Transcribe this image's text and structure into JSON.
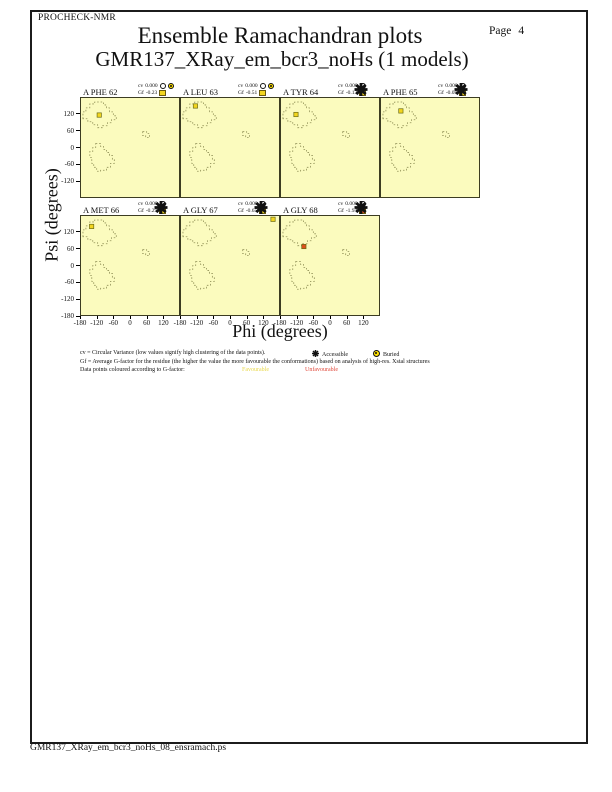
{
  "header": {
    "app_name": "PROCHECK-NMR",
    "title": "Ensemble Ramachandran plots",
    "page_label": "Page",
    "page_number": "4",
    "subtitle": "GMR137_XRay_em_bcr3_noHs (1 models)"
  },
  "axes": {
    "x_label": "Phi (degrees)",
    "y_label": "Psi (degrees)",
    "x_ticks": [
      -180,
      -120,
      -60,
      0,
      60,
      120
    ],
    "y_ticks_row1": [
      120,
      60,
      0,
      -60,
      -120
    ],
    "y_ticks_row2": [
      120,
      60,
      0,
      -60,
      -120,
      -180
    ]
  },
  "chart_data": {
    "type": "scatter",
    "xlim": [
      -180,
      180
    ],
    "ylim": [
      -180,
      180
    ],
    "x_axis": "Phi (degrees)",
    "y_axis": "Psi (degrees)",
    "rows": [
      [
        0,
        1,
        2,
        3
      ],
      [
        4,
        5,
        6
      ]
    ],
    "cv_label": "cv",
    "gf_label": "Gf",
    "plots": [
      {
        "residue": "A PHE 62",
        "cv": "0.000",
        "gf": "-0.23",
        "gf_status": "favourable",
        "exposure": "buried",
        "points": [
          {
            "phi": -113,
            "psi": 118,
            "status": "favourable"
          }
        ]
      },
      {
        "residue": "A LEU 63",
        "cv": "0.000",
        "gf": "-0.51",
        "gf_status": "favourable",
        "exposure": "buried",
        "points": [
          {
            "phi": -127,
            "psi": 151,
            "status": "favourable"
          }
        ]
      },
      {
        "residue": "A TYR 64",
        "cv": "0.000",
        "gf": "-0.13",
        "gf_status": "favourable",
        "exposure": "accessible",
        "points": [
          {
            "phi": -125,
            "psi": 120,
            "status": "favourable"
          }
        ]
      },
      {
        "residue": "A PHE 65",
        "cv": "0.000",
        "gf": "-0.08",
        "gf_status": "favourable",
        "exposure": "accessible",
        "points": [
          {
            "phi": -107,
            "psi": 133,
            "status": "favourable"
          }
        ]
      },
      {
        "residue": "A MET 66",
        "cv": "0.000",
        "gf": "-0.29",
        "gf_status": "favourable",
        "exposure": "accessible",
        "points": [
          {
            "phi": -141,
            "psi": 142,
            "status": "favourable"
          }
        ]
      },
      {
        "residue": "A GLY 67",
        "cv": "0.000",
        "gf": "-0.65",
        "gf_status": "favourable",
        "exposure": "accessible",
        "points": [
          {
            "phi": 158,
            "psi": 168,
            "status": "favourable"
          }
        ]
      },
      {
        "residue": "A GLY 68",
        "cv": "0.000",
        "gf": "-1.94",
        "gf_status": "unfavourable",
        "exposure": "accessible",
        "points": [
          {
            "phi": -96,
            "psi": 69,
            "status": "unfavourable"
          }
        ]
      }
    ]
  },
  "legend": {
    "cv_note": "cv = Circular Variance (low values signify high clustering of the data points).",
    "accessible_label": "Accessible",
    "buried_label": "Buried",
    "gf_note": "Gf = Average G-factor for the residue (the higher the value the more favourable the conformations)  based on analysis of high-res. Xstal structures",
    "colour_note": "Data points coloured according to G-factor:",
    "favourable_label": "Favourable",
    "unfavourable_label": "Unfavourable"
  },
  "footer": {
    "filename": "GMR137_XRay_em_bcr3_noHs_08_ensramach.ps"
  },
  "colors": {
    "favourable": "#f2d51f",
    "unfavourable": "#dd4f1e",
    "favourable_text": "#e8d84a",
    "unfavourable_text": "#e0483a",
    "plot_background": "#fbfbbe",
    "region_outline": "#8f8f55",
    "buried_icon": "#ffe000"
  }
}
